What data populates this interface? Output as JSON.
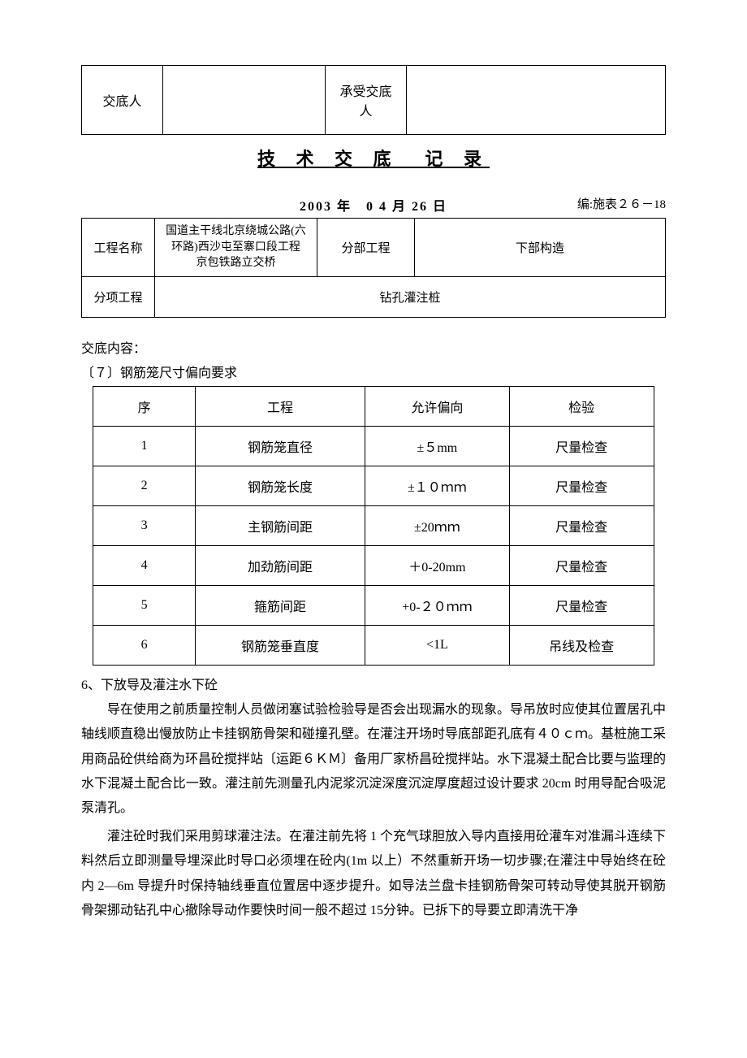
{
  "top": {
    "sender_label": "交底人",
    "receiver_label": "承受交底人"
  },
  "title": "技 术 交 底　记 录",
  "date": "2003 年　0 4 月 26 日",
  "code": "编:施表２６－18",
  "meta": {
    "proj_label": "工程名称",
    "proj_name": "国道主干线北京绕城公路(六\n环路)西沙屯至寨口段工程\n京包铁路立交桥",
    "part_label": "分部工程",
    "part_value": "下部构造",
    "sub_label": "分项工程",
    "sub_value": "钻孔灌注桩"
  },
  "content_label": "交底内容：",
  "section7_label": "〔７〕钢筋笼尺寸偏向要求",
  "spec": {
    "headers": [
      "序",
      "工程",
      "允许偏向",
      "检验"
    ],
    "rows": [
      [
        "1",
        "钢筋笼直径",
        "±５mm",
        "尺量检查"
      ],
      [
        "2",
        "钢筋笼长度",
        "±１０ｍｍ",
        "尺量检查"
      ],
      [
        "3",
        "主钢筋间距",
        "±20ｍｍ",
        "尺量检查"
      ],
      [
        "4",
        "加劲筋间距",
        "＋0-20mm",
        "尺量检查"
      ],
      [
        "5",
        "箍筋间距",
        "+0-２０ｍｍ",
        "尺量检查"
      ],
      [
        "6",
        "钢筋笼垂直度",
        "<1L",
        "吊线及检查"
      ]
    ]
  },
  "section6_heading": "6、下放导及灌注水下砼",
  "para1": "导在使用之前质量控制人员做闭塞试验检验导是否会出现漏水的现象。导吊放时应使其位置居孔中轴线顺直稳出慢放防止卡挂钢筋骨架和碰撞孔壁。在灌注开场时导底部距孔底有４０ｃｍ。基桩施工采用商品砼供给商为环昌砼搅拌站〔运距６ＫＭ〕备用厂家桥昌砼搅拌站。水下混凝土配合比要与监理的水下混凝土配合比一致。灌注前先测量孔内泥浆沉淀深度沉淀厚度超过设计要求 20cm 时用导配合吸泥泵清孔。",
  "para2": "灌注砼时我们采用剪球灌注法。在灌注前先将 1 个充气球胆放入导内直接用砼灌车对准漏斗连续下料然后立即测量导埋深此时导口必须埋在砼内(1m 以上）不然重新开场一切步骤;在灌注中导始终在砼内 2—6m 导提升时保持轴线垂直位置居中逐步提升。如导法兰盘卡挂钢筋骨架可转动导使其脱开钢筋骨架挪动钻孔中心撤除导动作要快时间一般不超过 15分钟。已拆下的导要立即清洗干净"
}
